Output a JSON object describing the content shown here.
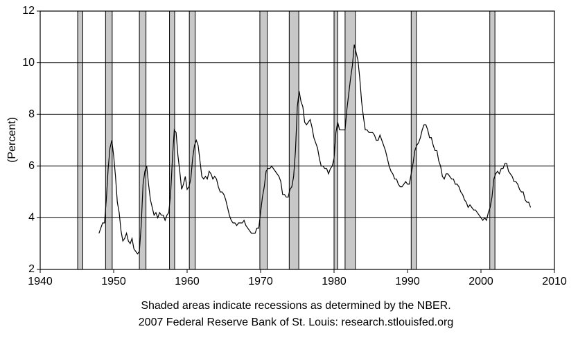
{
  "chart_data": {
    "type": "line",
    "ylabel": "(Percent)",
    "notes": [
      "Shaded areas indicate recessions as determined by the NBER.",
      "2007 Federal Reserve Bank of St. Louis: research.stlouisfed.org"
    ],
    "xlim": [
      1940,
      2010
    ],
    "xticks": [
      1940,
      1950,
      1960,
      1970,
      1980,
      1990,
      2000,
      2010
    ],
    "ylim": [
      2,
      12
    ],
    "yticks": [
      2,
      4,
      6,
      8,
      10,
      12
    ],
    "grid": true,
    "recession_color": "#c8c8c8",
    "recessions": [
      [
        1945.1,
        1945.8
      ],
      [
        1948.9,
        1949.8
      ],
      [
        1953.5,
        1954.4
      ],
      [
        1957.6,
        1958.3
      ],
      [
        1960.3,
        1961.1
      ],
      [
        1969.9,
        1970.9
      ],
      [
        1973.9,
        1975.2
      ],
      [
        1980.0,
        1980.5
      ],
      [
        1981.5,
        1982.9
      ],
      [
        1990.5,
        1991.2
      ],
      [
        2001.2,
        2001.9
      ]
    ],
    "x": [
      1948,
      1948.25,
      1948.5,
      1948.75,
      1949,
      1949.25,
      1949.5,
      1949.75,
      1950,
      1950.25,
      1950.5,
      1950.75,
      1951,
      1951.25,
      1951.5,
      1951.75,
      1952,
      1952.25,
      1952.5,
      1952.75,
      1953,
      1953.25,
      1953.5,
      1953.75,
      1954,
      1954.25,
      1954.5,
      1954.75,
      1955,
      1955.25,
      1955.5,
      1955.75,
      1956,
      1956.25,
      1956.5,
      1956.75,
      1957,
      1957.25,
      1957.5,
      1957.75,
      1958,
      1958.25,
      1958.5,
      1958.75,
      1959,
      1959.25,
      1959.5,
      1959.75,
      1960,
      1960.25,
      1960.5,
      1960.75,
      1961,
      1961.25,
      1961.5,
      1961.75,
      1962,
      1962.25,
      1962.5,
      1962.75,
      1963,
      1963.25,
      1963.5,
      1963.75,
      1964,
      1964.25,
      1964.5,
      1964.75,
      1965,
      1965.25,
      1965.5,
      1965.75,
      1966,
      1966.25,
      1966.5,
      1966.75,
      1967,
      1967.25,
      1967.5,
      1967.75,
      1968,
      1968.25,
      1968.5,
      1968.75,
      1969,
      1969.25,
      1969.5,
      1969.75,
      1970,
      1970.25,
      1970.5,
      1970.75,
      1971,
      1971.25,
      1971.5,
      1971.75,
      1972,
      1972.25,
      1972.5,
      1972.75,
      1973,
      1973.25,
      1973.5,
      1973.75,
      1974,
      1974.25,
      1974.5,
      1974.75,
      1975,
      1975.25,
      1975.5,
      1975.75,
      1976,
      1976.25,
      1976.5,
      1976.75,
      1977,
      1977.25,
      1977.5,
      1977.75,
      1978,
      1978.25,
      1978.5,
      1978.75,
      1979,
      1979.25,
      1979.5,
      1979.75,
      1980,
      1980.25,
      1980.5,
      1980.75,
      1981,
      1981.25,
      1981.5,
      1981.75,
      1982,
      1982.25,
      1982.5,
      1982.75,
      1983,
      1983.25,
      1983.5,
      1983.75,
      1984,
      1984.25,
      1984.5,
      1984.75,
      1985,
      1985.25,
      1985.5,
      1985.75,
      1986,
      1986.25,
      1986.5,
      1986.75,
      1987,
      1987.25,
      1987.5,
      1987.75,
      1988,
      1988.25,
      1988.5,
      1988.75,
      1989,
      1989.25,
      1989.5,
      1989.75,
      1990,
      1990.25,
      1990.5,
      1990.75,
      1991,
      1991.25,
      1991.5,
      1991.75,
      1992,
      1992.25,
      1992.5,
      1992.75,
      1993,
      1993.25,
      1993.5,
      1993.75,
      1994,
      1994.25,
      1994.5,
      1994.75,
      1995,
      1995.25,
      1995.5,
      1995.75,
      1996,
      1996.25,
      1996.5,
      1996.75,
      1997,
      1997.25,
      1997.5,
      1997.75,
      1998,
      1998.25,
      1998.5,
      1998.75,
      1999,
      1999.25,
      1999.5,
      1999.75,
      2000,
      2000.25,
      2000.5,
      2000.75,
      2001,
      2001.25,
      2001.5,
      2001.75,
      2002,
      2002.25,
      2002.5,
      2002.75,
      2003,
      2003.25,
      2003.5,
      2003.75,
      2004,
      2004.25,
      2004.5,
      2004.75,
      2005,
      2005.25,
      2005.5,
      2005.75,
      2006,
      2006.25,
      2006.5,
      2006.75
    ],
    "series": [
      {
        "color": "#000000",
        "values": [
          3.4,
          3.6,
          3.8,
          3.8,
          4.7,
          5.9,
          6.7,
          7.0,
          6.4,
          5.6,
          4.6,
          4.2,
          3.5,
          3.1,
          3.2,
          3.4,
          3.1,
          3.0,
          3.2,
          2.8,
          2.7,
          2.6,
          2.7,
          3.7,
          5.3,
          5.8,
          6.0,
          5.3,
          4.7,
          4.4,
          4.1,
          4.2,
          4.0,
          4.2,
          4.1,
          4.1,
          3.9,
          4.1,
          4.2,
          4.9,
          6.3,
          7.4,
          7.3,
          6.4,
          5.8,
          5.1,
          5.3,
          5.6,
          5.1,
          5.2,
          5.5,
          6.3,
          6.8,
          7.0,
          6.8,
          6.2,
          5.6,
          5.5,
          5.6,
          5.5,
          5.8,
          5.7,
          5.5,
          5.6,
          5.5,
          5.2,
          5.0,
          5.0,
          4.9,
          4.7,
          4.4,
          4.1,
          3.9,
          3.8,
          3.8,
          3.7,
          3.8,
          3.8,
          3.8,
          3.9,
          3.7,
          3.6,
          3.5,
          3.4,
          3.4,
          3.4,
          3.6,
          3.6,
          4.2,
          4.8,
          5.2,
          5.8,
          5.9,
          5.9,
          6.0,
          5.9,
          5.8,
          5.7,
          5.6,
          5.4,
          4.9,
          4.9,
          4.8,
          4.8,
          5.1,
          5.2,
          5.6,
          6.6,
          8.3,
          8.9,
          8.5,
          8.3,
          7.7,
          7.6,
          7.7,
          7.8,
          7.5,
          7.1,
          6.9,
          6.7,
          6.3,
          6.0,
          6.0,
          5.9,
          5.9,
          5.7,
          5.9,
          6.0,
          6.3,
          7.3,
          7.7,
          7.4,
          7.4,
          7.4,
          7.4,
          8.2,
          8.8,
          9.4,
          9.9,
          10.7,
          10.4,
          10.1,
          9.4,
          8.5,
          7.9,
          7.4,
          7.4,
          7.3,
          7.3,
          7.3,
          7.2,
          7.0,
          7.0,
          7.2,
          7.0,
          6.8,
          6.6,
          6.3,
          6.0,
          5.8,
          5.7,
          5.5,
          5.5,
          5.3,
          5.2,
          5.2,
          5.3,
          5.4,
          5.3,
          5.3,
          5.7,
          6.1,
          6.6,
          6.8,
          6.9,
          7.1,
          7.4,
          7.6,
          7.6,
          7.4,
          7.1,
          7.1,
          6.8,
          6.6,
          6.6,
          6.2,
          6.0,
          5.6,
          5.5,
          5.7,
          5.7,
          5.6,
          5.5,
          5.5,
          5.3,
          5.3,
          5.2,
          5.0,
          4.9,
          4.7,
          4.6,
          4.4,
          4.5,
          4.4,
          4.3,
          4.3,
          4.2,
          4.1,
          4.0,
          3.9,
          4.0,
          3.9,
          4.2,
          4.4,
          4.8,
          5.5,
          5.7,
          5.8,
          5.7,
          5.9,
          5.9,
          6.1,
          6.1,
          5.8,
          5.7,
          5.6,
          5.4,
          5.4,
          5.3,
          5.1,
          5.0,
          5.0,
          4.7,
          4.6,
          4.6,
          4.4
        ]
      }
    ]
  }
}
